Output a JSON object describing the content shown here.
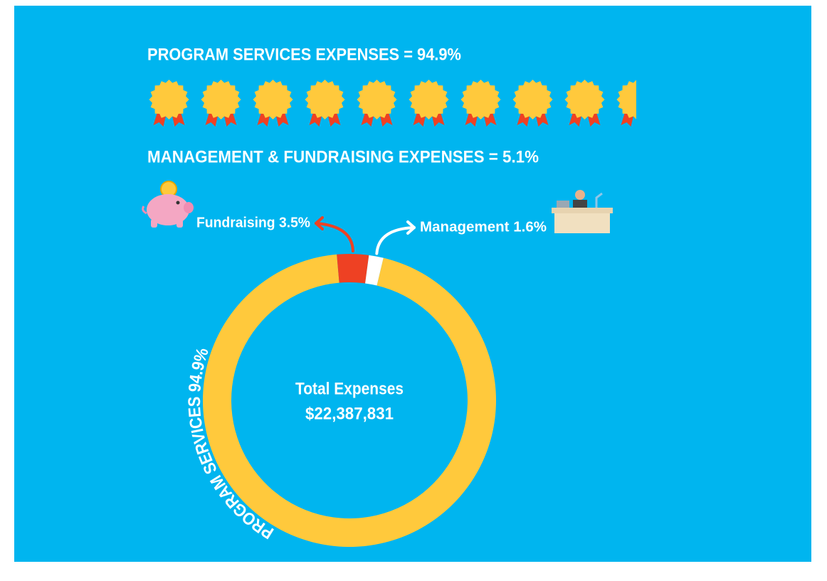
{
  "chart_data": {
    "type": "pie",
    "donut": true,
    "headlines": [
      "PROGRAM SERVICES EXPENSES = 94.9%",
      "MANAGEMENT & FUNDRAISING EXPENSES = 5.1%"
    ],
    "center_text": [
      "Total Expenses",
      "$22,387,831"
    ],
    "values": [
      94.9,
      3.5,
      1.6
    ],
    "value_labels": [
      "PROGRAM SERVICES 94.9%",
      "Fundraising 3.5%",
      "Management 1.6%"
    ],
    "colors": [
      "#FFC93C",
      "#EE4123",
      "#FFFFFF"
    ]
  }
}
